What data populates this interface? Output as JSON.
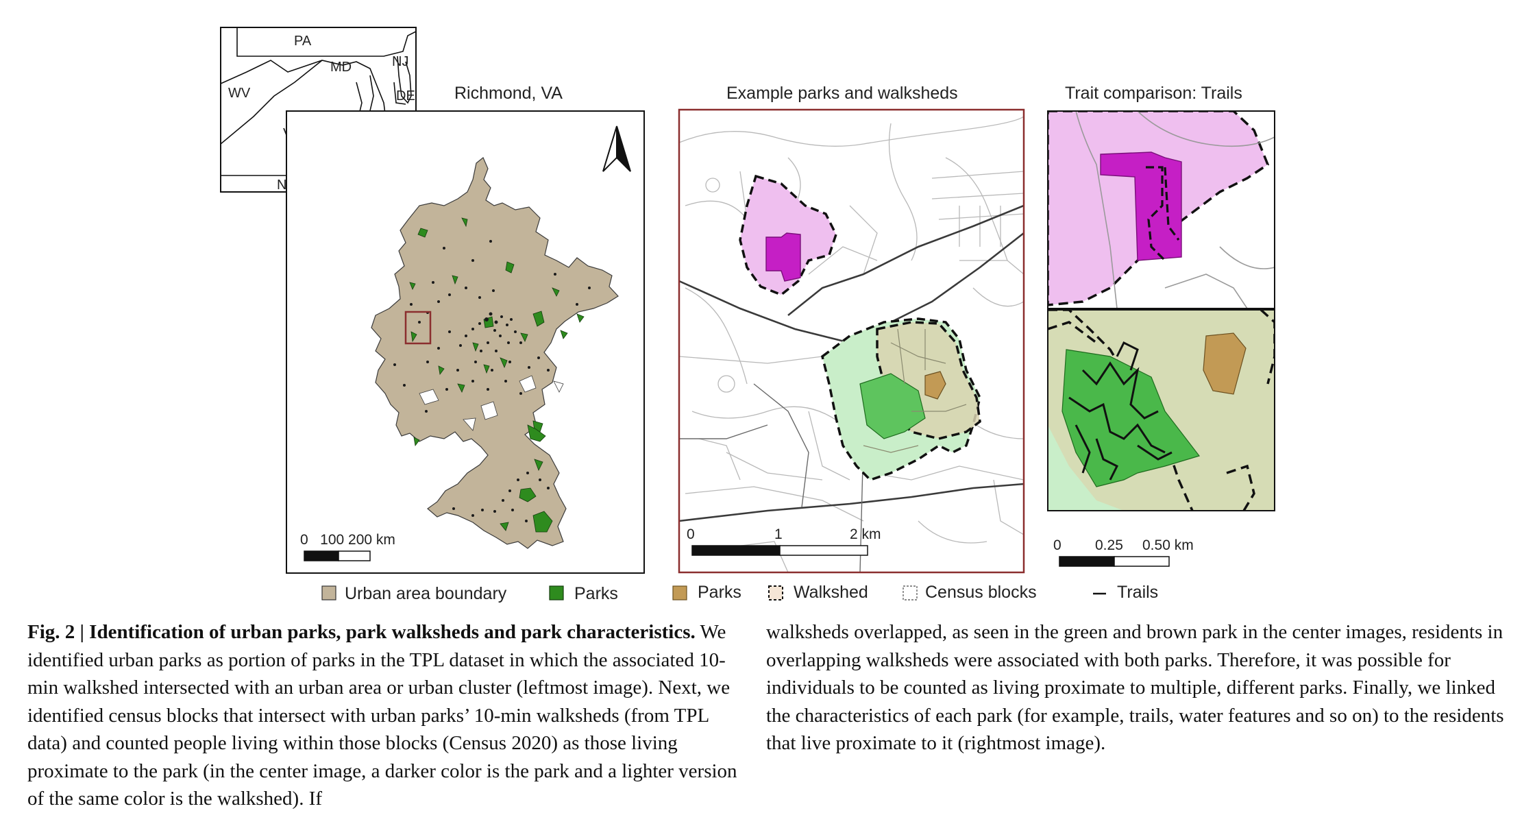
{
  "figure": {
    "inset_labels": {
      "pa": "PA",
      "md": "MD",
      "nj": "NJ",
      "wv": "WV",
      "de": "DE",
      "va": "VA",
      "nc": "NC"
    },
    "panels": {
      "richmond_title": "Richmond, VA",
      "example_title": "Example parks and walksheds",
      "trait_title": "Trait comparison: Trails"
    },
    "scalebars": {
      "richmond": "0   100 200 km",
      "example": {
        "a": "0",
        "b": "1",
        "c": "2 km"
      },
      "trait": {
        "a": "0",
        "b": "0.25",
        "c": "0.50 km"
      }
    },
    "legend": {
      "urban": "Urban area boundary",
      "parks_green": "Parks",
      "parks_brown": "Parks",
      "walkshed": "Walkshed",
      "census": "Census blocks",
      "trails": "Trails"
    },
    "colors": {
      "urban": "#c2b49a",
      "park_green": "#2e8b1e",
      "park_brown": "#c29a55",
      "magenta_park": "#c51fc5",
      "magenta_walkshed": "#efbfef",
      "green_walkshed": "#c9eec9",
      "frame_red": "#8b2e2e"
    }
  },
  "caption": {
    "title": "Fig. 2 | Identification of urban parks, park walksheds and park characteristics.",
    "left": "We identified urban parks as portion of parks in the TPL dataset in which the associated 10-min walkshed intersected with an urban area or urban cluster (leftmost image). Next, we identified census blocks that intersect with urban parks’ 10-min walksheds (from TPL data) and counted people living within those blocks (Census 2020) as those living proximate to the park (in the center image, a darker color is the park and a lighter version of the same color is the walkshed). If",
    "right": "walksheds overlapped, as seen in the green and brown park in the center images, residents in overlapping walksheds were associated with both parks. Therefore, it was possible for individuals to be counted as living proximate to multiple, different parks. Finally, we linked the characteristics of each park (for example, trails, water features and so on) to the residents that live proximate to it (rightmost image)."
  }
}
